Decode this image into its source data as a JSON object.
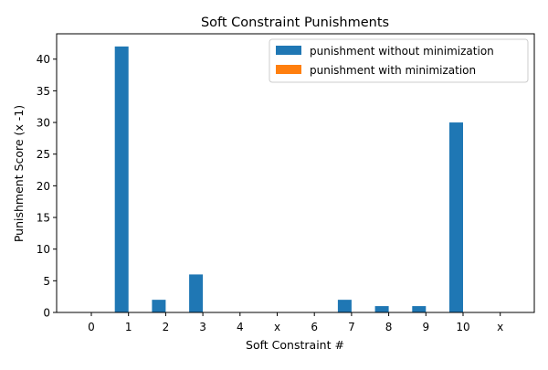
{
  "chart_data": {
    "type": "bar",
    "title": "Soft Constraint Punishments",
    "xlabel": "Soft Constraint #",
    "ylabel": "Punishment Score (x -1)",
    "categories": [
      "0",
      "1",
      "2",
      "3",
      "4",
      "x",
      "6",
      "7",
      "8",
      "9",
      "10",
      "x"
    ],
    "series": [
      {
        "name": "punishment without minimization",
        "color": "#1f77b4",
        "values": [
          0,
          42,
          2,
          6,
          0,
          0,
          0,
          2,
          1,
          1,
          30,
          0
        ]
      },
      {
        "name": "punishment with minimization",
        "color": "#ff7f0e",
        "values": [
          0,
          0,
          0,
          0,
          0,
          0,
          0,
          0,
          0,
          0,
          0,
          0
        ]
      }
    ],
    "ylim": [
      0,
      44
    ],
    "yticks": [
      0,
      5,
      10,
      15,
      20,
      25,
      30,
      35,
      40
    ],
    "grid": false,
    "legend_position": "top-right"
  }
}
